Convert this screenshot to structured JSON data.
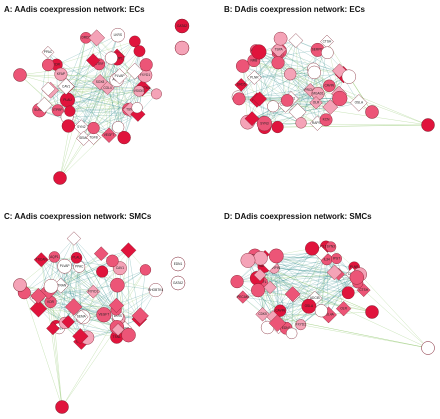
{
  "panels": [
    {
      "id": "A",
      "title": "A: AAdis coexpression network: ECs",
      "labels": [
        "BHOBTK4",
        "ITPRP",
        "VEGFT",
        "TSCAN",
        "KDR",
        "SOX8",
        "VSIOIS",
        "PPAC",
        "DRD3",
        "LKRS",
        "PLAU",
        "NAMP1",
        "FXYD1",
        "SUSD2",
        "CDLAP",
        "STRAN",
        "TSNL",
        "AQP1",
        "KFAP",
        "SYN2",
        "PLVAP",
        "SEMA",
        "CAV1",
        "TGFB",
        "COL4",
        "GATA2",
        "OTRF"
      ],
      "isolated_labels": [
        "GATA2"
      ]
    },
    {
      "id": "B",
      "title": "B: DAdis coexpression network: ECs",
      "labels": [
        "PRCMS",
        "MGAD1",
        "CTSH",
        "RAPSD",
        "NRB",
        "OLR",
        "COL4A",
        "PLNR",
        "FXYD1",
        "CDK5",
        "ADCIB",
        "IL34",
        "SERPIN",
        "CLDN5",
        "DRD5",
        "TSPA",
        "OSLA",
        "EGFL",
        "EDN1",
        "PDCD",
        "IPGT",
        "KCN",
        "CAVIN",
        "SYN3"
      ]
    },
    {
      "id": "C",
      "title": "C: AAdis coexpression network: SMCs",
      "labels": [
        "BHOBTK4",
        "ITPRP",
        "VEGFT",
        "TSCAN",
        "KDR",
        "SOX8",
        "PPAC",
        "DRD3",
        "LKRS",
        "PLAU",
        "NAMP1",
        "FXYD1",
        "SUSD2",
        "CDLAP",
        "STRAN",
        "TSNL",
        "AQP1",
        "KFAP",
        "PLVAP",
        "SEMA",
        "CAV1",
        "TGFB",
        "COL4",
        "EDN1",
        "GATA2"
      ],
      "isolated_labels": [
        "EDN1",
        "GATA2"
      ]
    },
    {
      "id": "D",
      "title": "D: DAdis coexpression network: SMCs",
      "labels": [
        "CTSH",
        "RAPSD",
        "NRB",
        "OLR",
        "COL4A",
        "PLNR",
        "FXYD1",
        "CDK5",
        "ADCIB",
        "IL34",
        "SERPIN",
        "CLDN5",
        "DRD5",
        "OSLA",
        "EGFL",
        "PDCD",
        "IPGT",
        "KCN",
        "CAVIN",
        "SYN3",
        "PECAM",
        "EDN1"
      ]
    }
  ],
  "colors": {
    "node_dark": "#e0143c",
    "node_mid": "#ec5577",
    "node_light": "#f4a3b7",
    "node_white": "#ffffff",
    "edge_teal": "#2f8c8c",
    "edge_green": "#8fc66b",
    "outline": "#7a1a2a"
  }
}
